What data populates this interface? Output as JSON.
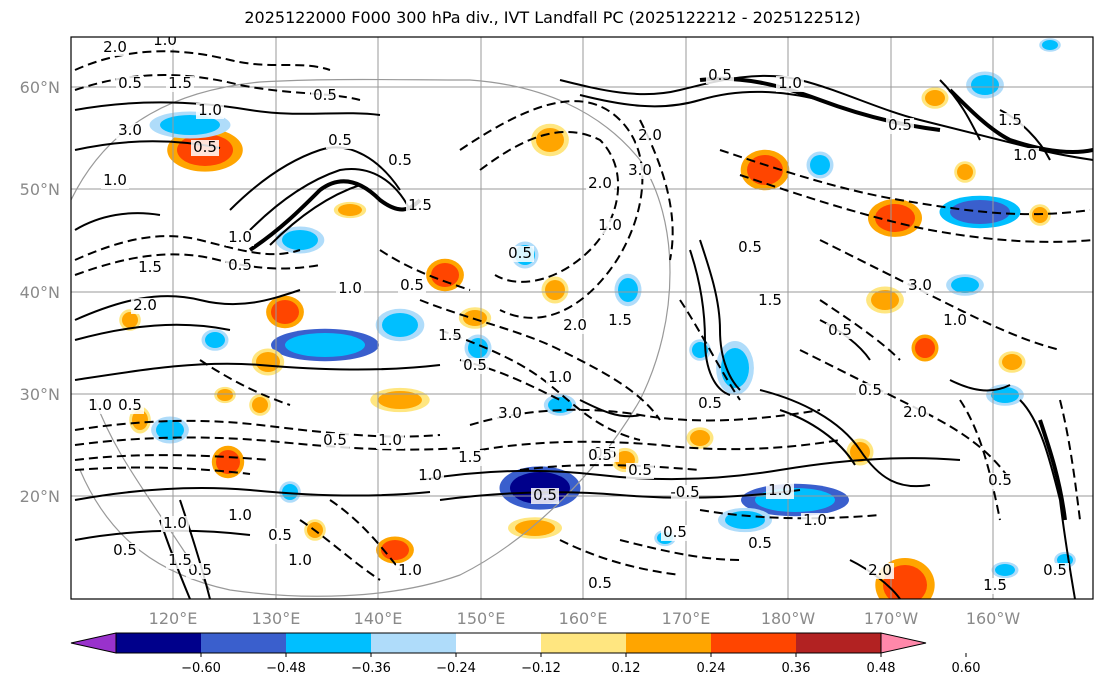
{
  "title": "2025122000 F000 300 hPa div., IVT Landfall PC (2025122212 - 2025122512)",
  "lat_labels": [
    "60°N",
    "50°N",
    "40°N",
    "30°N",
    "20°N"
  ],
  "lon_labels": [
    "120°E",
    "130°E",
    "140°E",
    "150°E",
    "160°E",
    "170°E",
    "180°W",
    "170°W",
    "160°W"
  ],
  "colorbar": {
    "colors": [
      "#9932cc",
      "#00008b",
      "#3a5fcd",
      "#00bfff",
      "#afdcfa",
      "#ffffff",
      "#ffe680",
      "#ffa500",
      "#ff4500",
      "#b22222",
      "#ff88aa"
    ],
    "tick_labels": [
      "−0.60",
      "−0.48",
      "−0.36",
      "−0.24",
      "−0.12",
      "0.12",
      "0.24",
      "0.36",
      "0.48",
      "0.60"
    ]
  },
  "contour_labels": [
    "2.0",
    "1.0",
    "0.5",
    "1.5",
    "0.5",
    "1.0",
    "3.0",
    "0.5",
    "1.0",
    "0.5",
    "0.5",
    "1.5",
    "2.0",
    "3.0",
    "1.0",
    "0.5",
    "1.5",
    "0.5",
    "2.0",
    "1.0",
    "0.5",
    "1.0",
    "0.5",
    "1.5",
    "2.0",
    "1.0",
    "0.5",
    "3.0",
    "0.5",
    "1.0",
    "1.5",
    "1.0",
    "0.5",
    "0.5",
    "-0.5",
    "0.5",
    "0.5",
    "1.0",
    "1.0",
    "0.5",
    "0.5",
    "1.5",
    "0.5",
    "3.0",
    "1.0",
    "2.0",
    "0.5",
    "1.5",
    "1.0",
    "0.5",
    "0.5",
    "1.0",
    "2.0",
    "1.0",
    "0.5",
    "1.5",
    "1.0",
    "0.5",
    "2.0",
    "1.5",
    "0.5",
    "1.0",
    "0.5",
    "0.5",
    "1.0",
    "1.5",
    "0.5",
    "1.0",
    "0.5",
    "0.5"
  ]
}
